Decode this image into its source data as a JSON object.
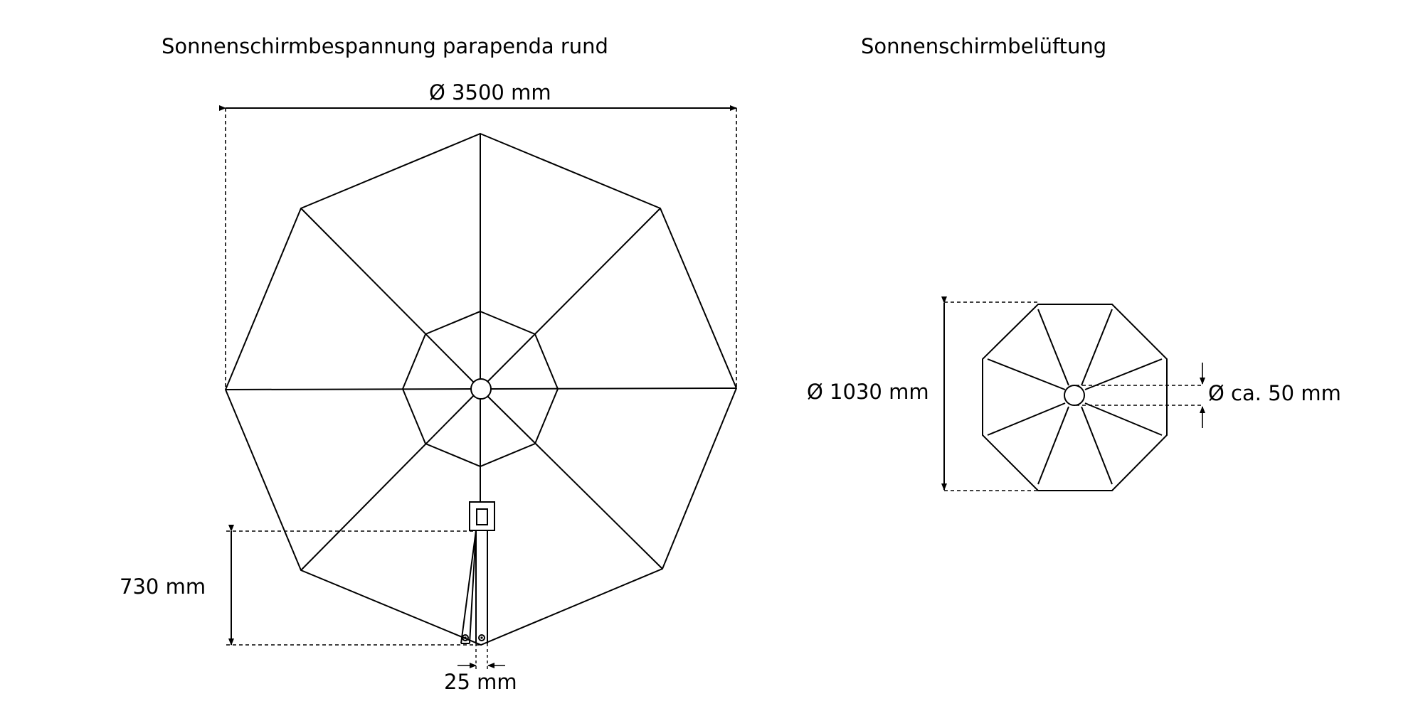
{
  "titles": {
    "left": "Sonnenschirmbespannung parapenda rund",
    "right": "Sonnenschirmbelüftung"
  },
  "dimensions": {
    "canopy_diameter": "Ø 3500 mm",
    "flap_height": "730 mm",
    "strap_gap": "25 mm",
    "vent_diameter": "Ø 1030 mm",
    "vent_hole_diameter": "Ø ca. 50 mm"
  },
  "colors": {
    "line": "#000000",
    "background": "#ffffff"
  }
}
